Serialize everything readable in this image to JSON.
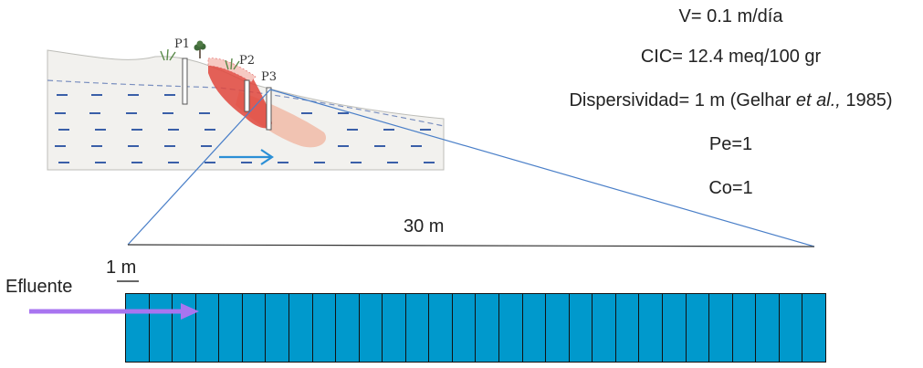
{
  "params": {
    "velocity": "V= 0.1 m/día",
    "cec": "CIC= 12.4 meq/100 gr",
    "dispersivity_prefix": "Dispersividad= 1 m (Gelhar ",
    "dispersivity_italic": "et al.,",
    "dispersivity_suffix": " 1985)",
    "peclet": "Pe=1",
    "initial_conc": "Co=1"
  },
  "cross_section": {
    "wells": [
      "P1",
      "P2",
      "P3"
    ]
  },
  "annotations": {
    "domain_length": "30 m",
    "cell_size": "1 m",
    "inflow": "Efluente"
  },
  "grid": {
    "cell_count": 30,
    "fill_color": "#0099cc",
    "border_color": "#111111"
  },
  "colors": {
    "water_dash": "#3a5fa8",
    "plume_core": "#e0463c",
    "plume_tail": "#f0a58a",
    "flow_arrow": "#2b8fd6",
    "inflow_arrow": "#a875f0",
    "zoom_lines": "#4a7fc8"
  }
}
